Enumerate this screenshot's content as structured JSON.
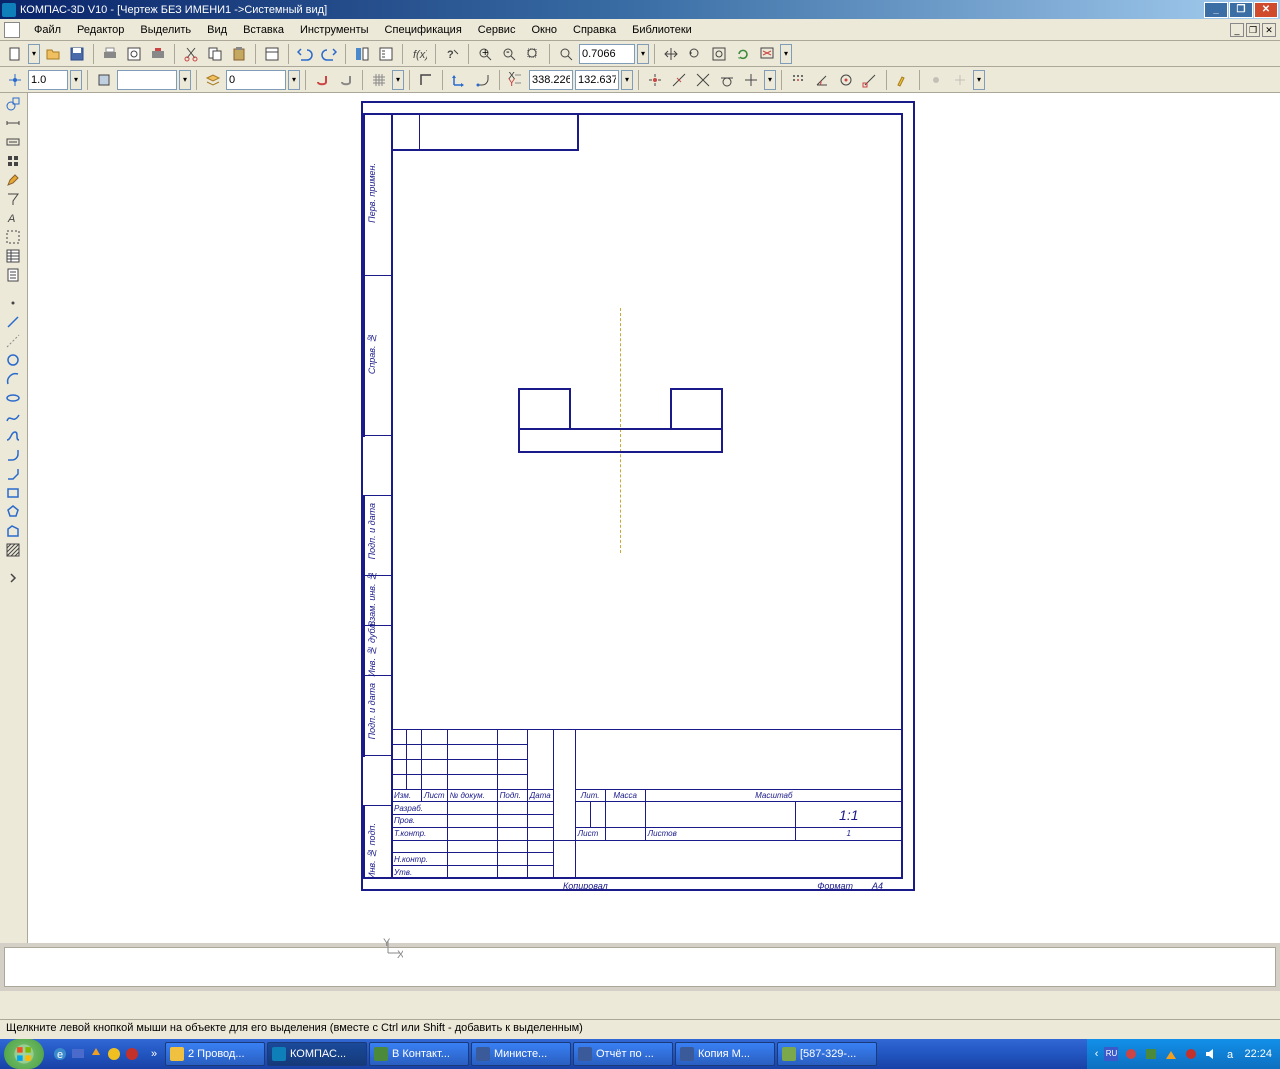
{
  "window": {
    "title": "КОМПАС-3D V10 - [Чертеж БЕЗ ИМЕНИ1 ->Системный вид]"
  },
  "menu": {
    "items": [
      "Файл",
      "Редактор",
      "Выделить",
      "Вид",
      "Вставка",
      "Инструменты",
      "Спецификация",
      "Сервис",
      "Окно",
      "Справка",
      "Библиотеки"
    ]
  },
  "toolbar1": {
    "zoom_value": "0.7066"
  },
  "toolbar2": {
    "step_value": "1.0",
    "layer_value": "0",
    "coord_x": "338.226",
    "coord_y": "132.637"
  },
  "drawing": {
    "frame_color": "#1a1a8a",
    "axis_color": "#c8a838",
    "titleblock": {
      "rows": {
        "izm": "Изм.",
        "list": "Лист",
        "ndokum": "№ докум.",
        "podp": "Подп.",
        "data": "Дата",
        "razrab": "Разраб.",
        "prov": "Пров.",
        "tkontr": "Т.контр.",
        "nkontr": "Н.контр.",
        "utv": "Утв.",
        "lit": "Лит.",
        "massa": "Масса",
        "masshtab": "Масштаб",
        "scale": "1:1",
        "list2": "Лист",
        "listov": "Листов",
        "listov_n": "1",
        "kopiroval": "Копировал",
        "format": "Формат",
        "format_v": "А4"
      },
      "side_labels": [
        "Перв. примен.",
        "Справ. №",
        "Подп. и дата",
        "Взам. инв. №",
        "Инв. № дубл.",
        "Подп. и дата",
        "Инв. № подп."
      ]
    }
  },
  "statusbar": {
    "text": "Щелкните левой кнопкой мыши на объекте для его выделения (вместе с Ctrl или Shift - добавить к выделенным)"
  },
  "taskbar": {
    "tasks": [
      {
        "label": "2 Провод...",
        "color": "#f0c040"
      },
      {
        "label": "КОМПАС...",
        "color": "#0e7fb8",
        "active": true
      },
      {
        "label": "В Контакт...",
        "color": "#4a8a3a"
      },
      {
        "label": "Министе...",
        "color": "#3a5a9a"
      },
      {
        "label": "Отчёт по ...",
        "color": "#3a5a9a"
      },
      {
        "label": "Копия М...",
        "color": "#3a5a9a"
      },
      {
        "label": "[587-329-...",
        "color": "#7aa84a"
      }
    ],
    "tray": {
      "lang": "RU",
      "time": "22:24"
    }
  }
}
